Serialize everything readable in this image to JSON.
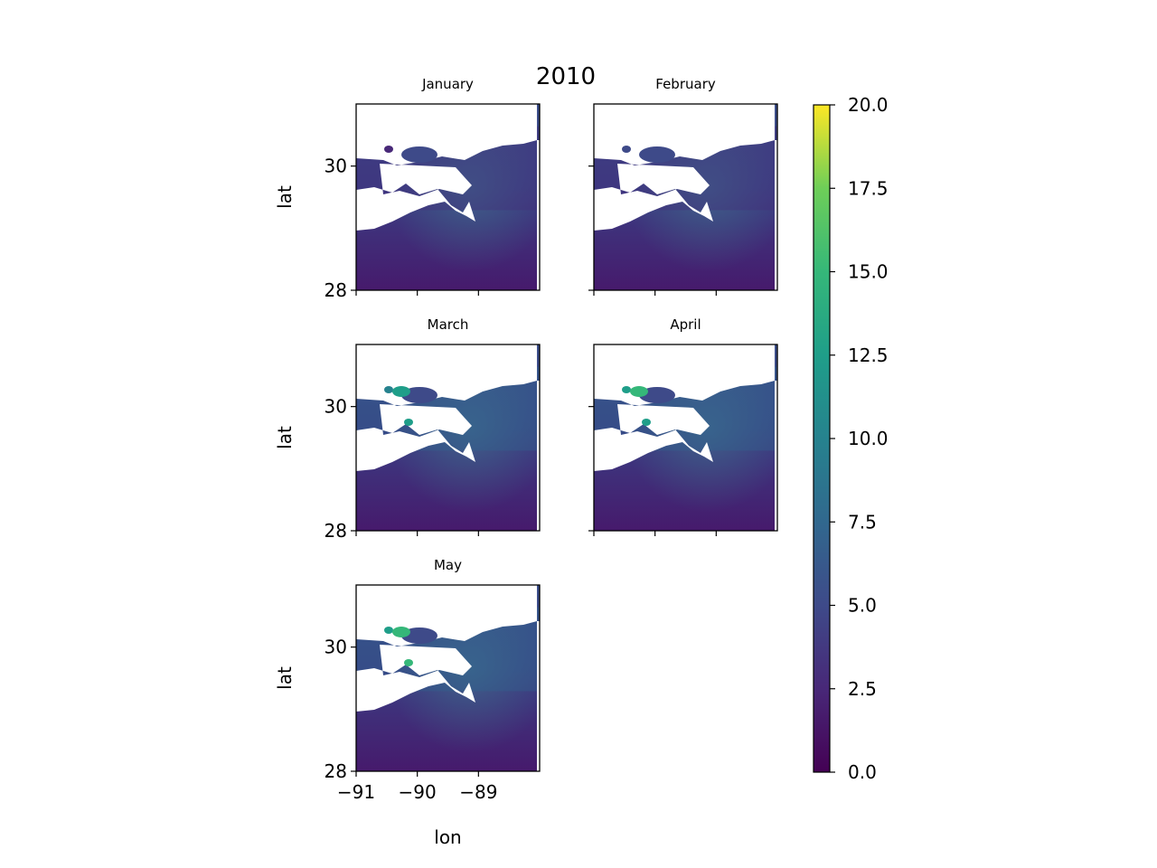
{
  "chart_data": {
    "type": "heatmap",
    "title": "2010",
    "xlabel": "lon",
    "ylabel": "lat",
    "xlim": [
      -91,
      -88
    ],
    "ylim": [
      28,
      31
    ],
    "xticks": [
      "−91",
      "−90",
      "−89"
    ],
    "yticks": [
      "28",
      "30"
    ],
    "panels": [
      {
        "title": "January",
        "mean_level": 1.8,
        "coastal_max": 4.5
      },
      {
        "title": "February",
        "mean_level": 1.9,
        "coastal_max": 5.0
      },
      {
        "title": "March",
        "mean_level": 2.3,
        "coastal_max": 13.5
      },
      {
        "title": "April",
        "mean_level": 2.2,
        "coastal_max": 15.0
      },
      {
        "title": "May",
        "mean_level": 2.1,
        "coastal_max": 15.5
      }
    ],
    "colorbar": {
      "colormap": "viridis",
      "range": [
        0,
        20
      ],
      "ticks": [
        "0.0",
        "2.5",
        "5.0",
        "7.5",
        "10.0",
        "12.5",
        "15.0",
        "17.5",
        "20.0"
      ]
    },
    "colors": {
      "viridis_low": "#440154",
      "viridis_mid": "#21918c",
      "viridis_high": "#fde725"
    }
  }
}
